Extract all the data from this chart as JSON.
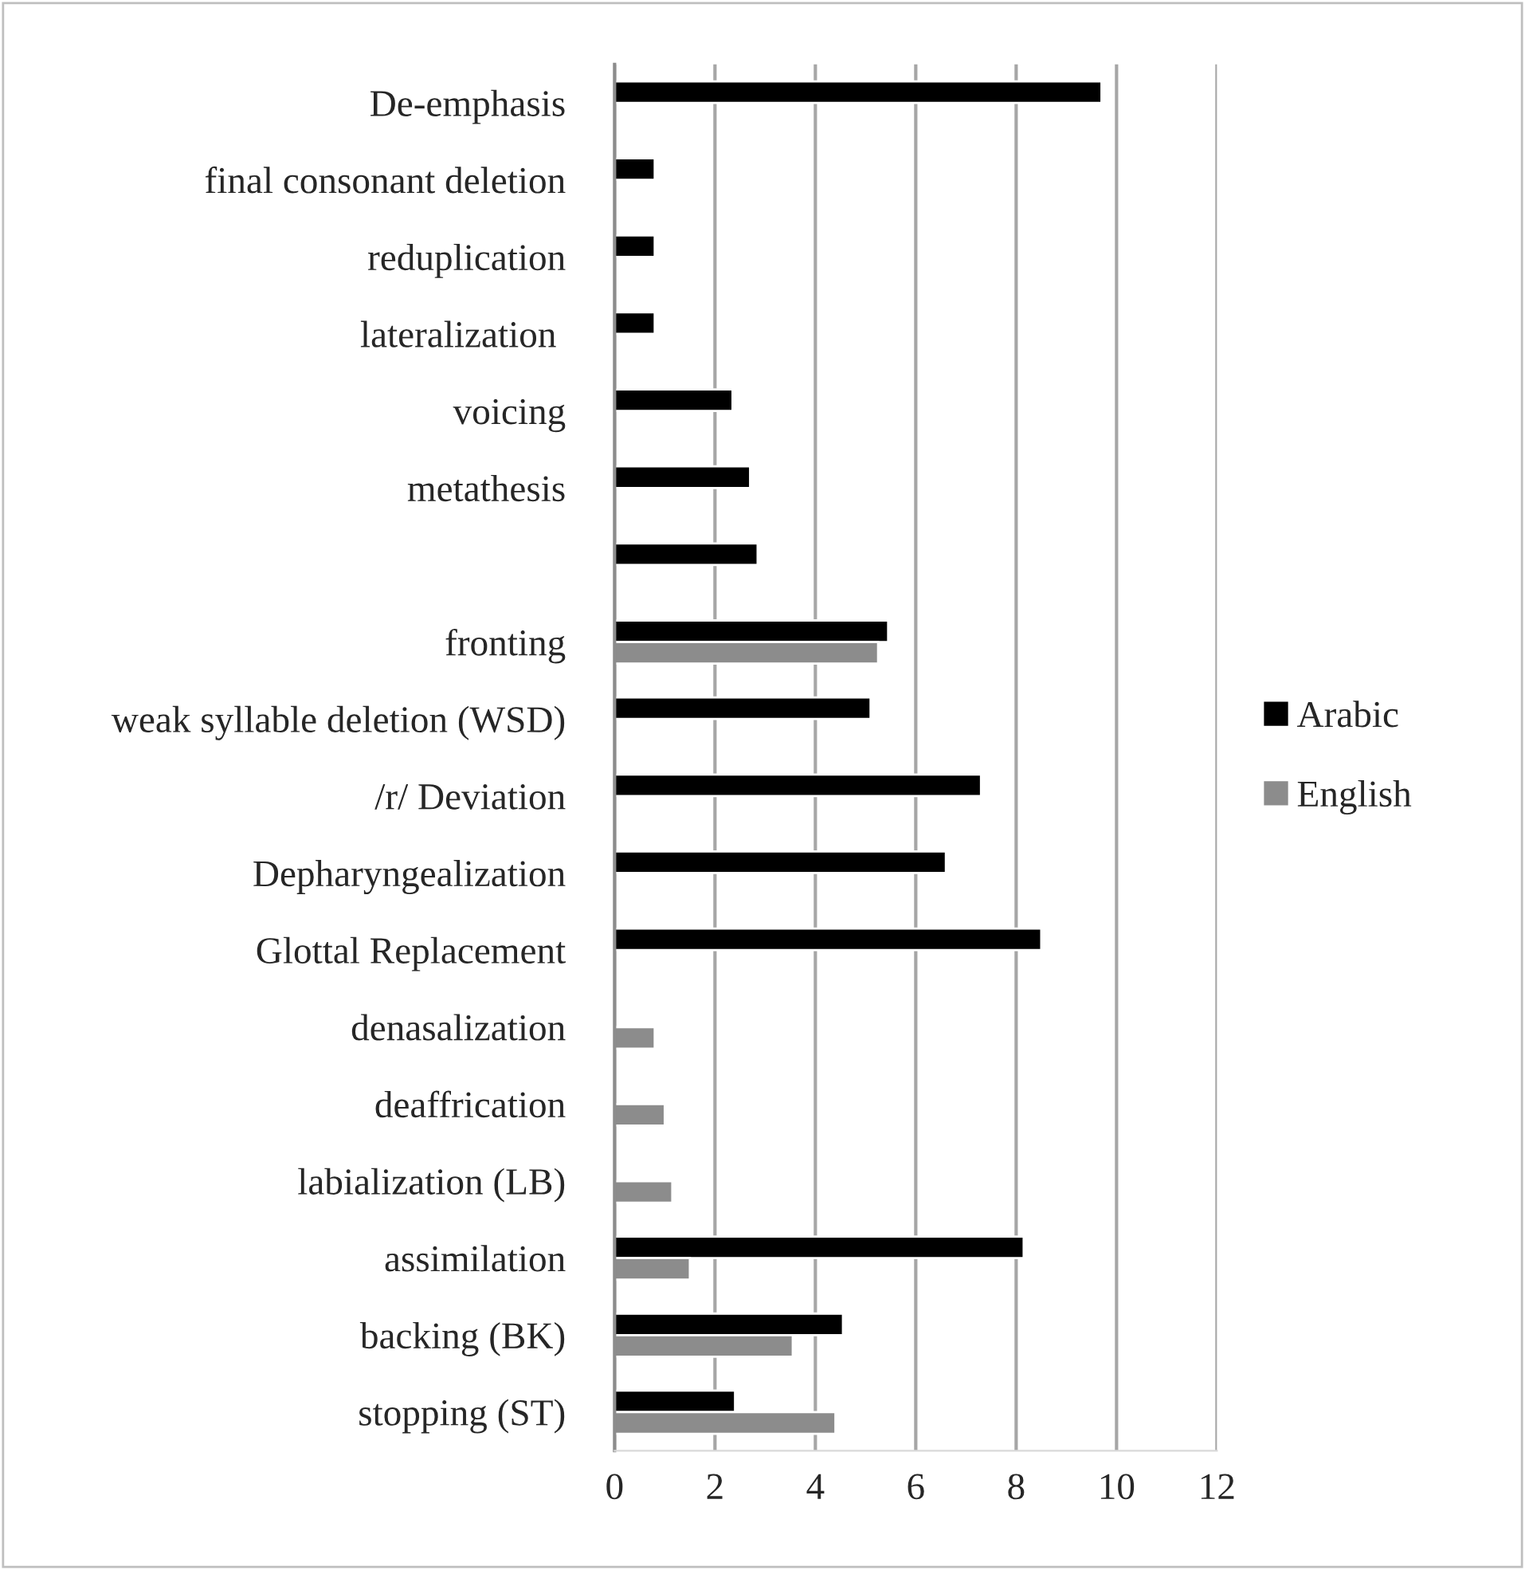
{
  "chart_data": {
    "type": "bar",
    "orientation": "horizontal",
    "categories": [
      "De-emphasis",
      "final consonant deletion",
      "reduplication",
      "lateralization ",
      "voicing",
      "metathesis",
      null,
      "fronting",
      "weak syllable deletion (WSD)",
      "/r/ Deviation",
      "Depharyngealization",
      "Glottal Replacement",
      "denasalization",
      "deaffrication",
      "labialization (LB)",
      "assimilation",
      "backing (BK)",
      "stopping (ST)"
    ],
    "series": [
      {
        "name": "Arabic",
        "color": "#000000",
        "values": [
          9.7,
          0.8,
          0.8,
          0.8,
          2.35,
          2.7,
          2.85,
          5.45,
          5.1,
          7.3,
          6.6,
          8.5,
          null,
          null,
          null,
          8.15,
          4.55,
          2.4
        ]
      },
      {
        "name": "English",
        "color": "#8c8c8c",
        "values": [
          null,
          null,
          null,
          null,
          null,
          null,
          null,
          5.25,
          null,
          null,
          null,
          null,
          0.8,
          1.0,
          1.15,
          1.5,
          3.55,
          4.4
        ]
      }
    ],
    "xlim": [
      0,
      12
    ],
    "xticks": [
      0,
      2,
      4,
      6,
      8,
      10,
      12
    ],
    "grid": "x",
    "legend": "right"
  }
}
